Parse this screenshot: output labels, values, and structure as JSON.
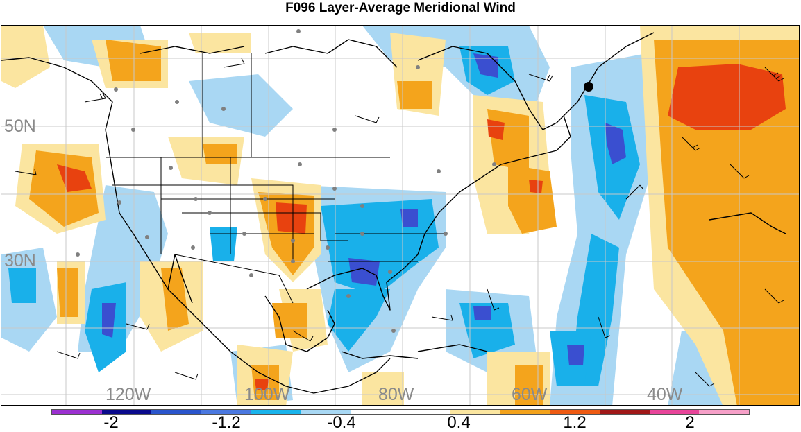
{
  "title": "F096 Layer-Average Meridional Wind",
  "lat_labels": [
    "50N",
    "30N"
  ],
  "lon_labels": [
    "120W",
    "100W",
    "80W",
    "60W",
    "40W"
  ],
  "colorbar": {
    "colors": [
      "#9b30d0",
      "#0a0a8c",
      "#2a55cc",
      "#4a78e0",
      "#19b4ec",
      "#a8d8f4",
      "#ffffff",
      "#ffffff",
      "#fbe6a0",
      "#f3a21b",
      "#ee5a12",
      "#a01818",
      "#e8459a",
      "#f6a0c8"
    ],
    "tick_labels": [
      "-2",
      "-1.2",
      "-0.4",
      "0.4",
      "1.2",
      "2"
    ]
  },
  "legend_colors": {
    "strong_positive": "#e8420f",
    "positive": "#f4a41c",
    "weak_positive": "#fbe5a0",
    "weak_negative": "#a9d7f3",
    "negative": "#19b0ea",
    "strong_negative": "#3a4fd0"
  }
}
